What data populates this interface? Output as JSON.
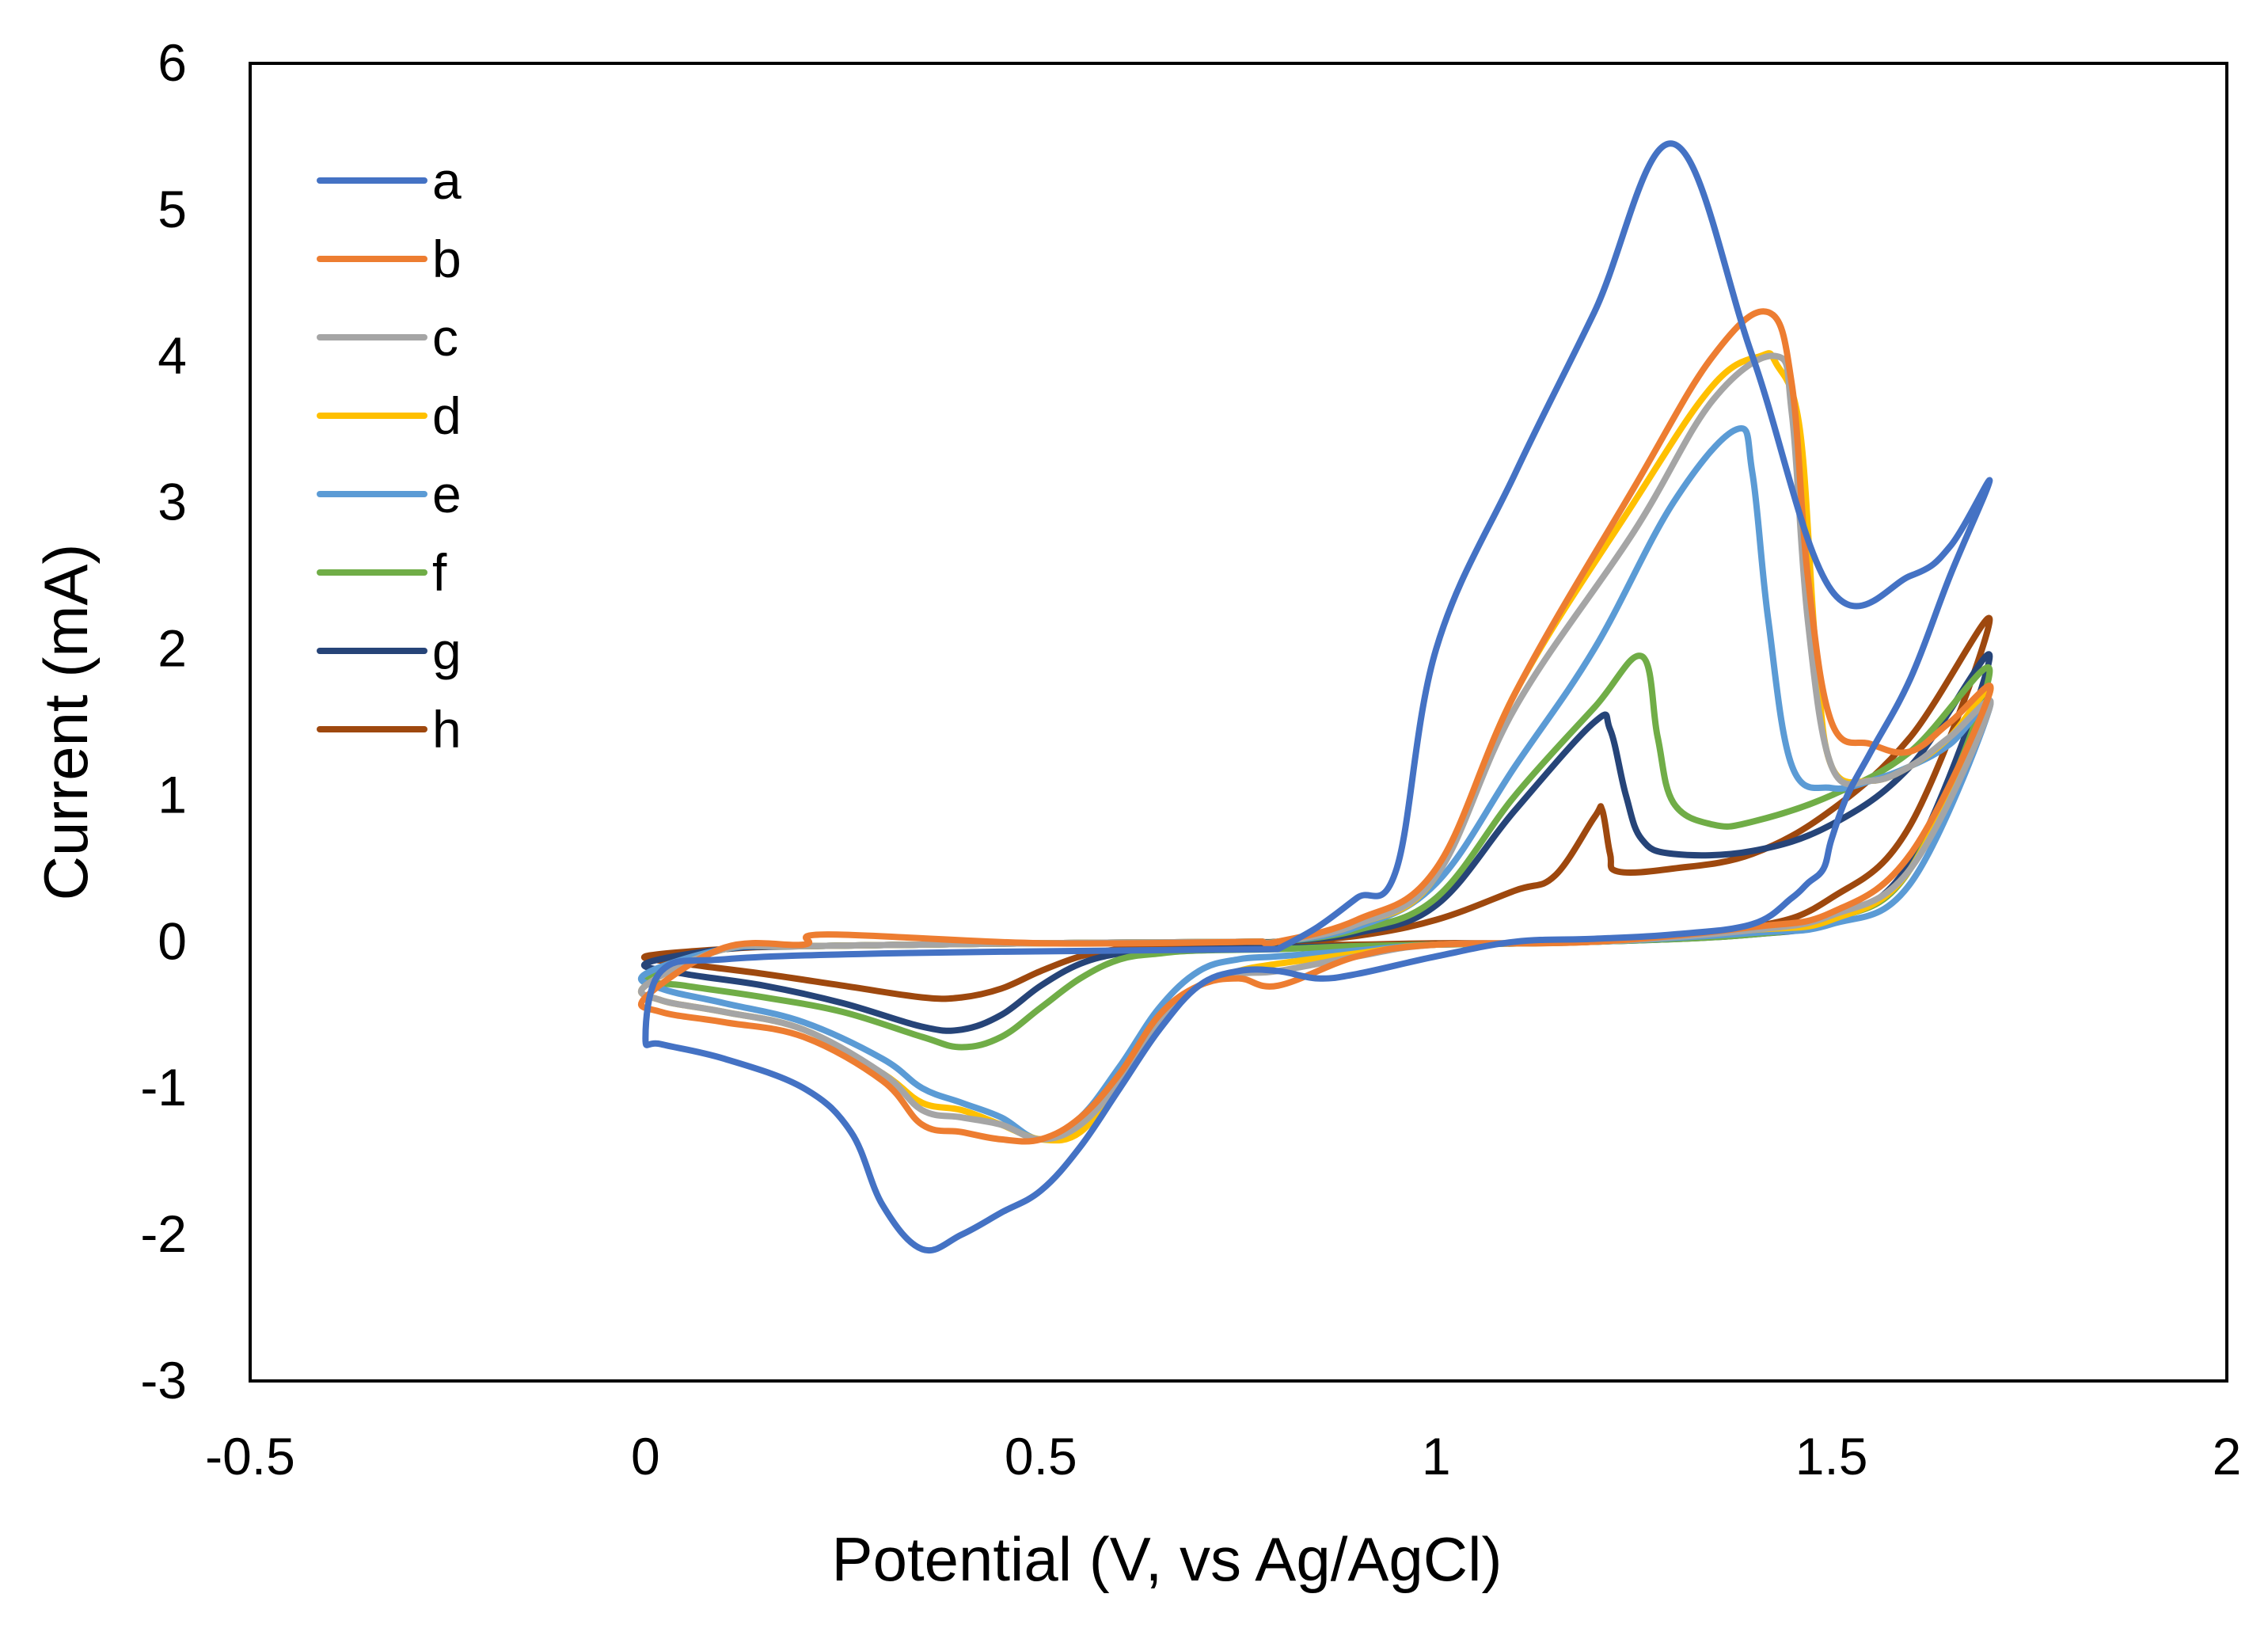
{
  "chart_data": {
    "type": "line",
    "title": "",
    "xlabel": "Potential (V, vs Ag/AgCl)",
    "ylabel": "Current (mA)",
    "xlim": [
      -0.5,
      2
    ],
    "ylim": [
      -3,
      6
    ],
    "x_ticks": [
      -0.5,
      0,
      0.5,
      1,
      1.5,
      2
    ],
    "x_tick_labels": [
      "-0.5",
      "0",
      "0.5",
      "1",
      "1.5",
      "2"
    ],
    "y_ticks": [
      -3,
      -2,
      -1,
      0,
      1,
      2,
      3,
      4,
      5,
      6
    ],
    "y_tick_labels": [
      "-3",
      "-2",
      "-1",
      "0",
      "1",
      "2",
      "3",
      "4",
      "5",
      "6"
    ],
    "grid": false,
    "legend_position": "top-left",
    "series": [
      {
        "name": "a",
        "color": "#4472C4",
        "x": [
          0.8,
          0.6,
          0.3,
          0.1,
          0.02,
          0.0,
          0.02,
          0.1,
          0.2,
          0.26,
          0.3,
          0.35,
          0.4,
          0.45,
          0.5,
          0.55,
          0.6,
          0.65,
          0.7,
          0.75,
          0.8,
          0.85,
          0.9,
          1.0,
          1.1,
          1.2,
          1.3,
          1.4,
          1.45,
          1.47,
          1.49,
          1.5,
          1.52,
          1.55,
          1.6,
          1.65,
          1.7,
          1.65,
          1.6,
          1.5,
          1.4,
          1.3,
          1.2,
          1.1,
          1.0,
          0.95,
          0.9,
          0.85
        ],
        "y": [
          -0.05,
          -0.06,
          -0.08,
          -0.12,
          -0.2,
          -0.66,
          -0.7,
          -0.8,
          -1.0,
          -1.3,
          -1.8,
          -2.1,
          -2.0,
          -1.85,
          -1.7,
          -1.4,
          -1.0,
          -0.6,
          -0.3,
          -0.2,
          -0.2,
          -0.25,
          -0.22,
          -0.1,
          0.0,
          0.02,
          0.05,
          0.12,
          0.3,
          0.4,
          0.5,
          0.7,
          1.0,
          1.3,
          1.8,
          2.5,
          3.15,
          2.7,
          2.5,
          2.4,
          4.0,
          5.45,
          4.3,
          3.2,
          2.0,
          0.5,
          0.3,
          0.1
        ]
      },
      {
        "name": "b",
        "color": "#ED7D31",
        "x": [
          0.78,
          0.5,
          0.23,
          0.2,
          0.1,
          0.0,
          0.02,
          0.1,
          0.2,
          0.3,
          0.35,
          0.4,
          0.45,
          0.5,
          0.55,
          0.6,
          0.65,
          0.7,
          0.75,
          0.8,
          0.9,
          1.0,
          1.2,
          1.4,
          1.5,
          1.6,
          1.7,
          1.65,
          1.6,
          1.55,
          1.5,
          1.47,
          1.45,
          1.42,
          1.35,
          1.25,
          1.1,
          1.0,
          0.9,
          0.8
        ],
        "y": [
          0.0,
          -0.01,
          0.05,
          -0.02,
          -0.04,
          -0.38,
          -0.48,
          -0.55,
          -0.65,
          -0.95,
          -1.25,
          -1.3,
          -1.35,
          -1.35,
          -1.2,
          -0.9,
          -0.5,
          -0.3,
          -0.25,
          -0.3,
          -0.1,
          -0.02,
          0.0,
          0.1,
          0.2,
          0.6,
          1.7,
          1.5,
          1.3,
          1.35,
          1.5,
          2.5,
          3.8,
          4.3,
          4.0,
          3.1,
          1.7,
          0.5,
          0.15,
          0.0
        ]
      },
      {
        "name": "c",
        "color": "#A5A5A5",
        "x": [
          0.78,
          0.5,
          0.2,
          0.1,
          0.0,
          0.02,
          0.1,
          0.2,
          0.3,
          0.35,
          0.4,
          0.45,
          0.5,
          0.55,
          0.6,
          0.65,
          0.7,
          0.75,
          0.8,
          0.9,
          1.0,
          1.2,
          1.4,
          1.5,
          1.6,
          1.7,
          1.65,
          1.6,
          1.55,
          1.5,
          1.47,
          1.45,
          1.43,
          1.35,
          1.25,
          1.1,
          1.0,
          0.9,
          0.8
        ],
        "y": [
          0.0,
          -0.01,
          -0.03,
          -0.05,
          -0.3,
          -0.4,
          -0.48,
          -0.6,
          -0.9,
          -1.15,
          -1.2,
          -1.25,
          -1.35,
          -1.25,
          -0.95,
          -0.55,
          -0.3,
          -0.22,
          -0.2,
          -0.1,
          -0.02,
          0.0,
          0.08,
          0.18,
          0.5,
          1.6,
          1.4,
          1.2,
          1.1,
          1.2,
          2.2,
          3.6,
          4.0,
          3.7,
          2.8,
          1.6,
          0.45,
          0.12,
          0.0
        ]
      },
      {
        "name": "d",
        "color": "#FFC000",
        "x": [
          0.78,
          0.5,
          0.2,
          0.1,
          0.0,
          0.02,
          0.1,
          0.2,
          0.3,
          0.35,
          0.4,
          0.45,
          0.5,
          0.55,
          0.6,
          0.65,
          0.7,
          0.75,
          0.8,
          0.9,
          1.0,
          1.2,
          1.4,
          1.5,
          1.6,
          1.7,
          1.65,
          1.6,
          1.55,
          1.5,
          1.48,
          1.46,
          1.43,
          1.41,
          1.35,
          1.25,
          1.1,
          1.0,
          0.9,
          0.8
        ],
        "y": [
          0.0,
          -0.01,
          -0.03,
          -0.05,
          -0.3,
          -0.4,
          -0.48,
          -0.6,
          -0.9,
          -1.1,
          -1.15,
          -1.25,
          -1.35,
          -1.3,
          -0.95,
          -0.55,
          -0.3,
          -0.2,
          -0.15,
          -0.08,
          -0.02,
          0.0,
          0.08,
          0.15,
          0.5,
          1.7,
          1.4,
          1.2,
          1.1,
          1.2,
          2.0,
          3.5,
          3.95,
          4.0,
          3.8,
          3.0,
          1.7,
          0.45,
          0.12,
          0.0
        ]
      },
      {
        "name": "e",
        "color": "#5B9BD5",
        "x": [
          0.78,
          0.5,
          0.2,
          0.1,
          0.0,
          0.02,
          0.1,
          0.2,
          0.3,
          0.35,
          0.4,
          0.45,
          0.5,
          0.55,
          0.6,
          0.65,
          0.7,
          0.75,
          0.8,
          0.9,
          1.0,
          1.2,
          1.4,
          1.5,
          1.6,
          1.7,
          1.65,
          1.6,
          1.55,
          1.5,
          1.45,
          1.42,
          1.4,
          1.38,
          1.3,
          1.2,
          1.1,
          1.0,
          0.9,
          0.8
        ],
        "y": [
          0.0,
          -0.01,
          -0.03,
          -0.05,
          -0.22,
          -0.32,
          -0.42,
          -0.55,
          -0.8,
          -1.0,
          -1.1,
          -1.2,
          -1.35,
          -1.2,
          -0.85,
          -0.45,
          -0.2,
          -0.12,
          -0.1,
          -0.06,
          -0.02,
          0.0,
          0.06,
          0.12,
          0.4,
          1.6,
          1.35,
          1.2,
          1.1,
          1.05,
          1.2,
          2.2,
          3.2,
          3.5,
          3.0,
          2.0,
          1.2,
          0.4,
          0.1,
          0.0
        ]
      },
      {
        "name": "f",
        "color": "#70AD47",
        "x": [
          0.78,
          0.5,
          0.2,
          0.1,
          0.0,
          0.05,
          0.15,
          0.25,
          0.35,
          0.4,
          0.45,
          0.5,
          0.55,
          0.6,
          0.65,
          0.7,
          0.8,
          0.9,
          1.0,
          1.2,
          1.4,
          1.5,
          1.6,
          1.7,
          1.6,
          1.5,
          1.4,
          1.35,
          1.3,
          1.28,
          1.26,
          1.2,
          1.1,
          1.0,
          0.9,
          0.8
        ],
        "y": [
          0.0,
          -0.01,
          -0.03,
          -0.05,
          -0.25,
          -0.3,
          -0.38,
          -0.48,
          -0.65,
          -0.72,
          -0.65,
          -0.45,
          -0.25,
          -0.12,
          -0.08,
          -0.06,
          -0.05,
          -0.03,
          -0.02,
          0.0,
          0.05,
          0.15,
          0.5,
          1.85,
          1.3,
          1.0,
          0.82,
          0.8,
          0.95,
          1.4,
          1.95,
          1.6,
          1.0,
          0.3,
          0.08,
          0.0
        ]
      },
      {
        "name": "g",
        "color": "#264478",
        "x": [
          0.78,
          0.5,
          0.2,
          0.1,
          0.0,
          0.05,
          0.15,
          0.25,
          0.35,
          0.4,
          0.45,
          0.5,
          0.55,
          0.6,
          0.65,
          0.7,
          0.8,
          0.9,
          1.0,
          1.2,
          1.4,
          1.5,
          1.6,
          1.7,
          1.6,
          1.5,
          1.4,
          1.3,
          1.26,
          1.24,
          1.22,
          1.2,
          1.1,
          1.0,
          0.9,
          0.8
        ],
        "y": [
          0.0,
          -0.01,
          -0.03,
          -0.05,
          -0.15,
          -0.22,
          -0.3,
          -0.42,
          -0.58,
          -0.6,
          -0.5,
          -0.3,
          -0.15,
          -0.08,
          -0.06,
          -0.05,
          -0.04,
          -0.03,
          -0.02,
          0.0,
          0.05,
          0.15,
          0.55,
          1.95,
          1.2,
          0.8,
          0.62,
          0.6,
          0.7,
          1.0,
          1.45,
          1.5,
          0.9,
          0.25,
          0.06,
          0.0
        ]
      },
      {
        "name": "h",
        "color": "#9E480E",
        "x": [
          0.78,
          0.5,
          0.2,
          0.1,
          0.0,
          0.05,
          0.15,
          0.25,
          0.35,
          0.4,
          0.45,
          0.5,
          0.55,
          0.6,
          0.65,
          0.7,
          0.8,
          0.9,
          1.0,
          1.2,
          1.4,
          1.5,
          1.6,
          1.7,
          1.6,
          1.5,
          1.4,
          1.3,
          1.23,
          1.22,
          1.21,
          1.2,
          1.15,
          1.1,
          1.0,
          0.9,
          0.8
        ],
        "y": [
          0.0,
          -0.01,
          -0.03,
          -0.05,
          -0.1,
          -0.15,
          -0.22,
          -0.3,
          -0.38,
          -0.38,
          -0.32,
          -0.2,
          -0.1,
          -0.05,
          -0.04,
          -0.03,
          -0.02,
          -0.02,
          -0.01,
          0.0,
          0.1,
          0.3,
          0.8,
          2.2,
          1.4,
          0.9,
          0.6,
          0.5,
          0.48,
          0.6,
          0.9,
          0.85,
          0.45,
          0.35,
          0.15,
          0.04,
          0.0
        ]
      }
    ]
  }
}
